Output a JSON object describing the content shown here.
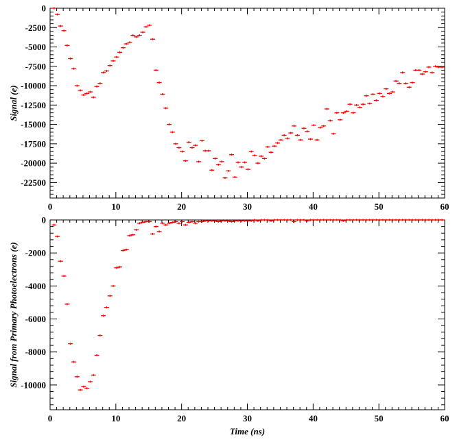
{
  "chart_data": [
    {
      "type": "scatter",
      "ylabel": "Signal (e)",
      "xlabel": "",
      "xlim": [
        0,
        60
      ],
      "ylim": [
        -24500,
        0
      ],
      "xticks": [
        0,
        10,
        20,
        30,
        40,
        50,
        60
      ],
      "yticks": [
        0,
        -2500,
        -5000,
        -7500,
        -10000,
        -12500,
        -15000,
        -17500,
        -20000,
        -22500
      ],
      "grid": false,
      "marker_color": "#ff0000",
      "x": [
        0.6,
        1.1,
        1.6,
        2.1,
        2.6,
        3.1,
        3.6,
        4.1,
        4.6,
        5.1,
        5.6,
        6.1,
        6.6,
        7.1,
        7.6,
        8.1,
        8.6,
        9.1,
        9.6,
        10.1,
        10.6,
        11.1,
        11.6,
        12.1,
        12.6,
        13.1,
        13.6,
        14.1,
        14.6,
        15.1,
        15.6,
        16.1,
        16.6,
        17.1,
        17.6,
        18.1,
        18.6,
        19.1,
        19.6,
        20.1,
        20.6,
        21.1,
        21.6,
        22.1,
        22.6,
        23.1,
        23.6,
        24.1,
        24.6,
        25.1,
        25.6,
        26.1,
        26.6,
        27.1,
        27.6,
        28.1,
        28.6,
        29.1,
        29.6,
        30.1,
        30.6,
        31.1,
        31.6,
        32.1,
        32.6,
        33.1,
        33.6,
        34.1,
        34.6,
        35.1,
        35.6,
        36.1,
        36.6,
        37.1,
        37.6,
        38.1,
        38.6,
        39.1,
        39.6,
        40.1,
        40.6,
        41.1,
        41.6,
        42.1,
        42.6,
        43.1,
        43.6,
        44.1,
        44.6,
        45.1,
        45.6,
        46.1,
        46.6,
        47.1,
        47.6,
        48.1,
        48.6,
        49.1,
        49.6,
        50.1,
        50.6,
        51.1,
        51.6,
        52.1,
        52.6,
        53.1,
        53.6,
        54.1,
        54.6,
        55.1,
        55.6,
        56.1,
        56.6,
        57.1,
        57.6,
        58.1,
        58.6,
        59.1,
        59.6
      ],
      "y": [
        0,
        -800,
        -2300,
        -2900,
        -4800,
        -6500,
        -7800,
        -10000,
        -10600,
        -11200,
        -11000,
        -10800,
        -11500,
        -10100,
        -9700,
        -8300,
        -8100,
        -7400,
        -6800,
        -6300,
        -5700,
        -5100,
        -4600,
        -4400,
        -3500,
        -3700,
        -3500,
        -3100,
        -2400,
        -2200,
        -4000,
        -8000,
        -9600,
        -11100,
        -12900,
        -15000,
        -16000,
        -17500,
        -18000,
        -18500,
        -19700,
        -17300,
        -18000,
        -17700,
        -19800,
        -17100,
        -18400,
        -18400,
        -20900,
        -19400,
        -20200,
        -19800,
        -21900,
        -21000,
        -18900,
        -21800,
        -19900,
        -20500,
        -19900,
        -20800,
        -18500,
        -19000,
        -20000,
        -19100,
        -19400,
        -17900,
        -18600,
        -17800,
        -17400,
        -17000,
        -16400,
        -16800,
        -16100,
        -15200,
        -16400,
        -17000,
        -15500,
        -15900,
        -16900,
        -15100,
        -17000,
        -15400,
        -15200,
        -13000,
        -14500,
        -16200,
        -13500,
        -14400,
        -13500,
        -13300,
        -12400,
        -13500,
        -12500,
        -12800,
        -12400,
        -11300,
        -12300,
        -11100,
        -11900,
        -11000,
        -11400,
        -10400,
        -11000,
        -10800,
        -9400,
        -9700,
        -8300,
        -9700,
        -10200,
        -9600,
        -8000,
        -8000,
        -8500,
        -8200,
        -7600,
        -8300,
        -7500,
        -7600,
        -7600
      ]
    },
    {
      "type": "scatter",
      "ylabel": "Signal from Primary Photoelectrons (e)",
      "xlabel": "Time (ns)",
      "xlim": [
        0,
        60
      ],
      "ylim": [
        -11500,
        0
      ],
      "xticks": [
        0,
        10,
        20,
        30,
        40,
        50,
        60
      ],
      "yticks": [
        0,
        -2000,
        -4000,
        -6000,
        -8000,
        -10000
      ],
      "grid": false,
      "marker_color": "#ff0000",
      "x": [
        0.6,
        1.1,
        1.6,
        2.1,
        2.6,
        3.1,
        3.6,
        4.1,
        4.6,
        5.1,
        5.6,
        6.1,
        6.6,
        7.1,
        7.6,
        8.1,
        8.6,
        9.1,
        9.6,
        10.1,
        10.6,
        11.1,
        11.6,
        12.1,
        12.6,
        13.1,
        13.6,
        14.1,
        14.6,
        15.1,
        15.6,
        16.1,
        16.6,
        17.1,
        17.6,
        18.1,
        18.6,
        19.1,
        19.6,
        20.1,
        20.6,
        21.1,
        21.6,
        22.1,
        22.6,
        23.1,
        23.6,
        24.1,
        24.6,
        25.1,
        25.6,
        26.1,
        26.6,
        27.1,
        27.6,
        28.1,
        28.6,
        29.1,
        29.6,
        30.1,
        30.6,
        31.1,
        31.6,
        32.1,
        32.6,
        33.1,
        33.6,
        34.1,
        34.6,
        35.1,
        35.6,
        36.1,
        36.6,
        37.1,
        37.6,
        38.1,
        38.6,
        39.1,
        39.6,
        40.1,
        40.6,
        41.1,
        41.6,
        42.1,
        42.6,
        43.1,
        43.6,
        44.1,
        44.6,
        45.1,
        45.6,
        46.1,
        46.6,
        47.1,
        47.6,
        48.1,
        48.6,
        49.1,
        49.6,
        50.1,
        50.6,
        51.1,
        51.6,
        52.1,
        52.6,
        53.1,
        53.6,
        54.1,
        54.6,
        55.1,
        55.6,
        56.1,
        56.6,
        57.1,
        57.6,
        58.1,
        58.6,
        59.1,
        59.6
      ],
      "y": [
        -300,
        -1000,
        -2500,
        -3400,
        -5100,
        -7500,
        -8600,
        -9500,
        -10300,
        -10100,
        -10200,
        -9800,
        -9400,
        -8200,
        -7000,
        -5800,
        -5300,
        -4600,
        -4000,
        -2900,
        -2850,
        -1850,
        -1800,
        -950,
        -900,
        -600,
        -200,
        -150,
        -100,
        -100,
        -850,
        -400,
        -700,
        -200,
        -300,
        -200,
        -150,
        -100,
        -200,
        -100,
        -300,
        -150,
        -100,
        -200,
        -100,
        -100,
        -50,
        -50,
        -50,
        -50,
        -100,
        -50,
        -50,
        -50,
        -100,
        -50,
        -50,
        -50,
        -50,
        -50,
        -50,
        0,
        -50,
        0,
        0,
        0,
        -50,
        0,
        0,
        0,
        0,
        0,
        0,
        -100,
        0,
        0,
        0,
        -50,
        0,
        0,
        0,
        0,
        0,
        0,
        0,
        0,
        0,
        0,
        -50,
        0,
        0,
        0,
        0,
        0,
        0,
        0,
        0,
        0,
        0,
        0,
        0,
        0,
        0,
        0,
        0,
        0,
        0,
        0,
        0,
        0,
        0,
        0,
        0,
        0,
        0,
        0,
        0,
        0,
        0
      ]
    }
  ]
}
